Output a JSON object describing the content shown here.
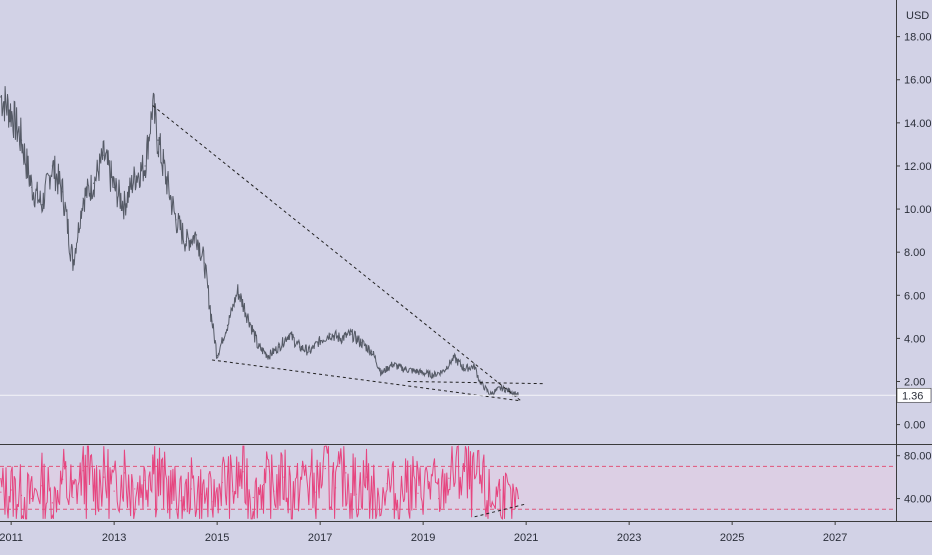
{
  "chart_data": [
    {
      "type": "line",
      "currency": "USD",
      "ylim": [
        -0.9,
        19.7
      ],
      "x_ticks": [
        "2011",
        "2013",
        "2015",
        "2017",
        "2019",
        "2021",
        "2023",
        "2025",
        "2027"
      ],
      "y_ticks": [
        "0.00",
        "2.00",
        "4.00",
        "6.00",
        "8.00",
        "10.00",
        "12.00",
        "14.00",
        "16.00",
        "18.00"
      ],
      "last_price_label": "1.36",
      "last_price": 1.36,
      "series": [
        {
          "x": [
            2010.8,
            2011.0,
            2011.2,
            2011.4,
            2011.6,
            2011.8,
            2012.0,
            2012.2,
            2012.4,
            2012.6,
            2012.8,
            2013.0,
            2013.2,
            2013.4,
            2013.6,
            2013.75,
            2013.85,
            2014.0,
            2014.2,
            2014.4,
            2014.6,
            2014.75,
            2014.9,
            2015.0,
            2015.2,
            2015.4,
            2015.6,
            2015.8,
            2016.0,
            2016.2,
            2016.4,
            2016.6,
            2016.8,
            2017.0,
            2017.2,
            2017.4,
            2017.6,
            2017.8,
            2018.0,
            2018.2,
            2018.4,
            2018.6,
            2018.8,
            2019.0,
            2019.2,
            2019.4,
            2019.6,
            2019.8,
            2020.0,
            2020.1,
            2020.3,
            2020.5,
            2020.7,
            2020.85
          ],
          "values": [
            15.2,
            14.5,
            13.2,
            11.0,
            10.2,
            12.0,
            10.8,
            7.5,
            10.5,
            11.2,
            12.5,
            11.0,
            10.2,
            11.5,
            12.0,
            14.8,
            13.2,
            11.5,
            9.5,
            8.5,
            8.8,
            7.5,
            4.8,
            3.2,
            4.6,
            6.2,
            5.0,
            3.6,
            3.2,
            3.6,
            4.2,
            3.6,
            3.4,
            3.9,
            4.2,
            4.0,
            4.2,
            3.8,
            3.4,
            2.4,
            2.8,
            2.6,
            2.5,
            2.4,
            2.3,
            2.5,
            3.1,
            2.6,
            2.7,
            2.0,
            1.4,
            1.7,
            1.55,
            1.36
          ]
        }
      ],
      "trendlines": [
        {
          "x": [
            2013.75,
            2020.9
          ],
          "y": [
            14.8,
            1.1
          ]
        },
        {
          "x": [
            2014.9,
            2020.9
          ],
          "y": [
            3.0,
            1.1
          ]
        },
        {
          "x": [
            2018.7,
            2021.35
          ],
          "y": [
            2.0,
            1.9
          ]
        }
      ]
    },
    {
      "type": "line",
      "ylim": [
        20,
        90
      ],
      "y_ticks": [
        "40.00",
        "80.00"
      ],
      "guide_levels": [
        70,
        30
      ],
      "series": [
        {
          "x": [
            2010.8,
            2011.0,
            2011.2,
            2011.4,
            2011.6,
            2011.8,
            2012.0,
            2012.2,
            2012.4,
            2012.6,
            2012.8,
            2013.0,
            2013.2,
            2013.4,
            2013.6,
            2013.75,
            2013.9,
            2014.1,
            2014.3,
            2014.5,
            2014.7,
            2014.9,
            2015.1,
            2015.3,
            2015.5,
            2015.7,
            2015.9,
            2016.1,
            2016.3,
            2016.5,
            2016.7,
            2016.9,
            2017.1,
            2017.3,
            2017.5,
            2017.7,
            2017.9,
            2018.1,
            2018.3,
            2018.5,
            2018.7,
            2018.9,
            2019.1,
            2019.3,
            2019.5,
            2019.7,
            2019.9,
            2020.1,
            2020.3,
            2020.5,
            2020.7,
            2020.85
          ],
          "values": [
            46,
            48,
            43,
            40,
            52,
            36,
            58,
            41,
            66,
            52,
            60,
            47,
            64,
            49,
            57,
            78,
            55,
            47,
            38,
            49,
            44,
            37,
            55,
            47,
            65,
            41,
            53,
            47,
            60,
            43,
            62,
            46,
            68,
            50,
            64,
            44,
            60,
            30,
            54,
            38,
            58,
            45,
            56,
            40,
            59,
            70,
            52,
            55,
            35,
            48,
            32,
            40
          ]
        }
      ],
      "trendlines": [
        {
          "x": [
            2020.0,
            2021.0
          ],
          "y": [
            23,
            35
          ]
        }
      ]
    }
  ]
}
